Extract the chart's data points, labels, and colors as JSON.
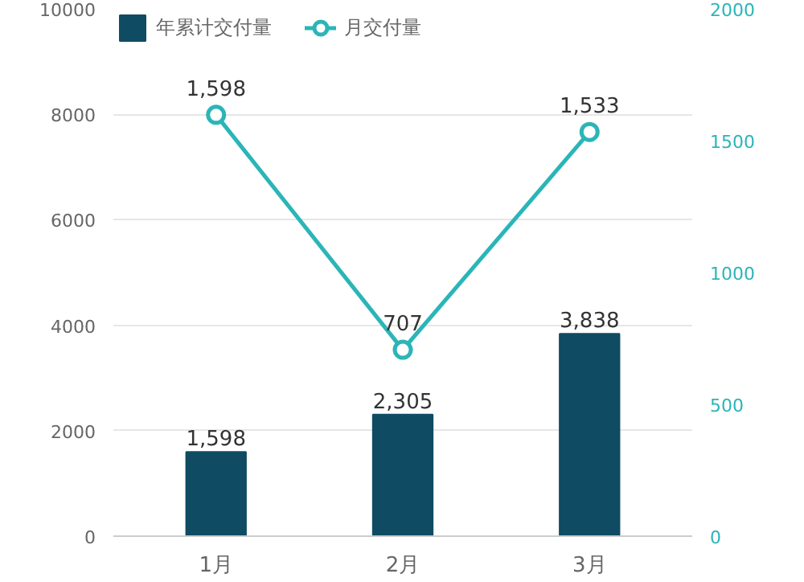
{
  "chart_data": {
    "type": "bar",
    "categories": [
      "1月",
      "2月",
      "3月"
    ],
    "series": [
      {
        "name": "年累计交付量",
        "color": "#0f4c63",
        "values": [
          1598,
          2305,
          3838
        ],
        "value_labels": [
          "1,598",
          "2,305",
          "3,838"
        ]
      },
      {
        "name": "月交付量",
        "type": "line",
        "axis": "y2",
        "color": "#2bb5b8",
        "values": [
          1598,
          707,
          1533
        ],
        "value_labels": [
          "1,598",
          "707",
          "1,533"
        ]
      }
    ],
    "ylim": [
      0,
      10000
    ],
    "yticks": [
      0,
      2000,
      4000,
      6000,
      8000,
      10000
    ],
    "y2lim": [
      0,
      2000
    ],
    "y2ticks": [
      0,
      500,
      1000,
      1500,
      2000
    ],
    "grid": "y",
    "legend": "top left",
    "marker": "circle",
    "line_style": "solid"
  }
}
